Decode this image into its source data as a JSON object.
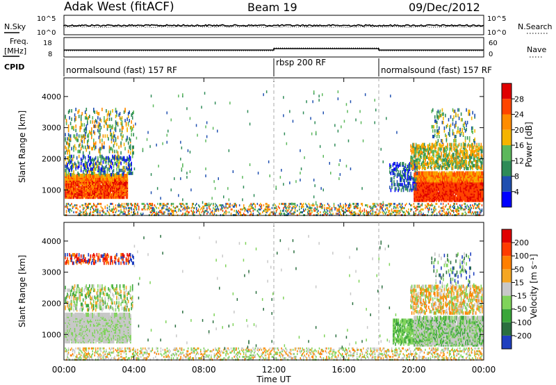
{
  "header": {
    "station": "Adak West (fitACF)",
    "beam": "Beam 19",
    "date": "09/Dec/2012"
  },
  "aux_panels": {
    "nsky_label": "N.Sky",
    "nsky_ticks": [
      "10^5",
      "10^0"
    ],
    "nsearch_label": "N.Search",
    "nsearch_ticks": [
      "10^5",
      "10^0"
    ],
    "freq_label": "Freq.",
    "freq_unit": "[MHz]",
    "freq_ticks": [
      "18",
      "8"
    ],
    "nave_label": "Nave",
    "nave_ticks": [
      "60",
      "0"
    ],
    "cpid_label": "CPID",
    "cpid_segments": [
      {
        "label": "normalsound (fast) 157 RF",
        "start_h": 0,
        "end_h": 12
      },
      {
        "label": "rbsp 200 RF",
        "start_h": 12,
        "end_h": 18
      },
      {
        "label": "normalsound (fast) 157 RF",
        "start_h": 18,
        "end_h": 24
      }
    ]
  },
  "chart_data": [
    {
      "type": "heatmap",
      "name": "power-panel",
      "ylabel": "Slant Range [km]",
      "ylim": [
        180,
        4600
      ],
      "yticks": [
        "1000",
        "2000",
        "3000",
        "4000"
      ],
      "xlim": [
        0,
        24
      ],
      "colorbar_label": "Power [dB]",
      "colorbar_ticks": [
        "4",
        "8",
        "12",
        "16",
        "20",
        "24",
        "28"
      ],
      "colors": [
        "#0000ff",
        "#1f4fb0",
        "#2e8b57",
        "#5cb85c",
        "#f5b400",
        "#ff8c00",
        "#ff4500",
        "#e00000"
      ]
    },
    {
      "type": "heatmap",
      "name": "velocity-panel",
      "ylabel": "Slant Range [km]",
      "ylim": [
        180,
        4600
      ],
      "yticks": [
        "1000",
        "2000",
        "3000",
        "4000"
      ],
      "xlim": [
        0,
        24
      ],
      "xlabel": "Time UT",
      "xticks": [
        "00:00",
        "04:00",
        "08:00",
        "12:00",
        "16:00",
        "20:00",
        "00:00"
      ],
      "colorbar_label": "Velocity [m s⁻¹]",
      "colorbar_ticks": [
        "200",
        "100",
        "50",
        "15",
        "-15",
        "-50",
        "-100",
        "-200"
      ],
      "colors": [
        "#1f3fbf",
        "#2a6f3f",
        "#3aa63a",
        "#7fd35a",
        "#c8c8c8",
        "#f5a623",
        "#ff7f00",
        "#ff3b00",
        "#e00000"
      ]
    }
  ]
}
